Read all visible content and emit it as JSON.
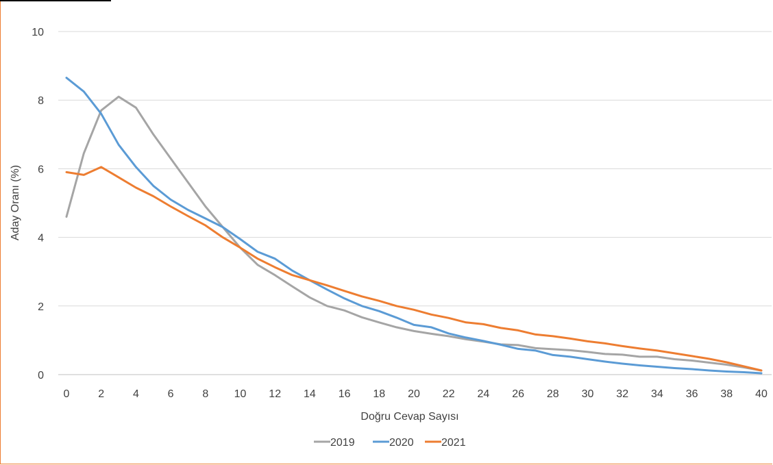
{
  "chart_data": {
    "type": "line",
    "xlabel": "Doğru Cevap Sayısı",
    "ylabel": "Aday Oranı (%)",
    "xlim": [
      0,
      40
    ],
    "ylim": [
      0,
      10
    ],
    "x_ticks": [
      0,
      2,
      4,
      6,
      8,
      10,
      12,
      14,
      16,
      18,
      20,
      22,
      24,
      26,
      28,
      30,
      32,
      34,
      36,
      38,
      40
    ],
    "y_ticks": [
      0,
      2,
      4,
      6,
      8,
      10
    ],
    "grid": "horizontal",
    "legend_position": "bottom",
    "x": [
      0,
      1,
      2,
      3,
      4,
      5,
      6,
      7,
      8,
      9,
      10,
      11,
      12,
      13,
      14,
      15,
      16,
      17,
      18,
      19,
      20,
      21,
      22,
      23,
      24,
      25,
      26,
      27,
      28,
      29,
      30,
      31,
      32,
      33,
      34,
      35,
      36,
      37,
      38,
      39,
      40
    ],
    "series": [
      {
        "name": "2019",
        "color": "#A5A5A5",
        "values": [
          4.6,
          6.45,
          7.7,
          8.1,
          7.78,
          7.0,
          6.3,
          5.6,
          4.9,
          4.3,
          3.7,
          3.2,
          2.9,
          2.57,
          2.25,
          2.0,
          1.87,
          1.67,
          1.52,
          1.38,
          1.27,
          1.19,
          1.12,
          1.03,
          0.96,
          0.88,
          0.86,
          0.77,
          0.74,
          0.71,
          0.66,
          0.6,
          0.58,
          0.52,
          0.52,
          0.45,
          0.41,
          0.35,
          0.29,
          0.21,
          0.12
        ]
      },
      {
        "name": "2020",
        "color": "#5B9BD5",
        "values": [
          8.65,
          8.25,
          7.6,
          6.7,
          6.05,
          5.5,
          5.1,
          4.8,
          4.55,
          4.3,
          3.95,
          3.58,
          3.38,
          3.03,
          2.75,
          2.48,
          2.22,
          2.0,
          1.85,
          1.66,
          1.45,
          1.38,
          1.2,
          1.08,
          0.98,
          0.87,
          0.75,
          0.7,
          0.57,
          0.52,
          0.45,
          0.38,
          0.32,
          0.27,
          0.23,
          0.19,
          0.16,
          0.12,
          0.09,
          0.07,
          0.04
        ]
      },
      {
        "name": "2021",
        "color": "#ED7D31",
        "values": [
          5.9,
          5.82,
          6.05,
          5.75,
          5.45,
          5.2,
          4.9,
          4.62,
          4.35,
          4.0,
          3.7,
          3.38,
          3.13,
          2.9,
          2.75,
          2.6,
          2.44,
          2.28,
          2.15,
          2.0,
          1.89,
          1.75,
          1.65,
          1.52,
          1.47,
          1.36,
          1.29,
          1.17,
          1.12,
          1.05,
          0.97,
          0.91,
          0.83,
          0.76,
          0.7,
          0.62,
          0.54,
          0.46,
          0.36,
          0.24,
          0.12
        ]
      }
    ]
  }
}
